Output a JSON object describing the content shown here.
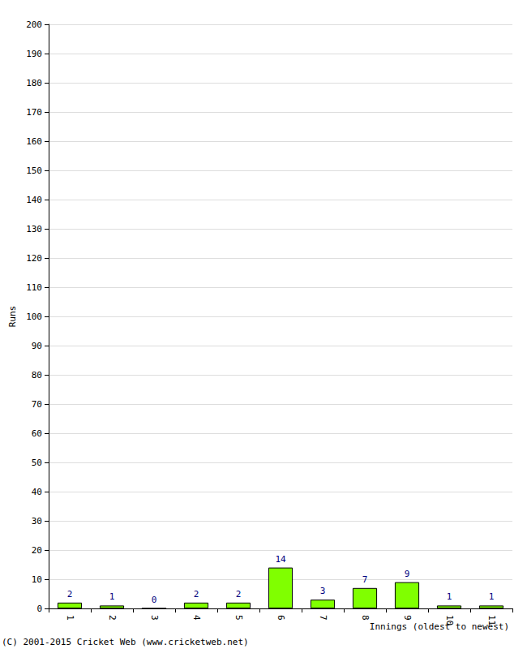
{
  "chart_data": {
    "type": "bar",
    "categories": [
      "1",
      "2",
      "3",
      "4",
      "5",
      "6",
      "7",
      "8",
      "9",
      "10",
      "11"
    ],
    "values": [
      2,
      1,
      0,
      2,
      2,
      14,
      3,
      7,
      9,
      1,
      1
    ],
    "color": "#80ff00",
    "x_label": "Innings (oldest to newest)",
    "y_label": "Runs",
    "annotations": [
      "(C) 2001-2015 Cricket Web (www.cricketweb.net)"
    ],
    "ylim": [
      0,
      200
    ],
    "yticks": [
      0,
      10,
      20,
      30,
      40,
      50,
      60,
      70,
      80,
      90,
      100,
      110,
      120,
      130,
      140,
      150,
      160,
      170,
      180,
      190,
      200
    ],
    "grid": true,
    "data_labels": true
  }
}
